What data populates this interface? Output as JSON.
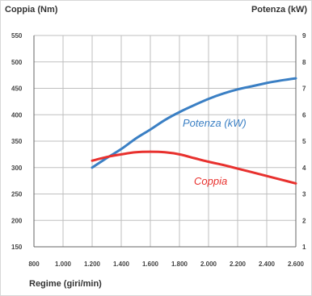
{
  "chart_data": {
    "type": "line",
    "title": "",
    "xlabel": "Regime (giri/min)",
    "ylabel_left": "Coppia (Nm)",
    "ylabel_right": "Potenza (kW)",
    "xlim": [
      800,
      2600
    ],
    "ylim_left": [
      150,
      550
    ],
    "ylim_right": [
      1,
      9
    ],
    "x_ticks": [
      "800",
      "1.000",
      "1.200",
      "1.400",
      "1.600",
      "1.800",
      "2.000",
      "2.200",
      "2.400",
      "2.600"
    ],
    "y_left_ticks": [
      "550",
      "500",
      "450",
      "400",
      "350",
      "300",
      "250",
      "200",
      "150"
    ],
    "y_right_ticks": [
      "9",
      "8",
      "7",
      "6",
      "5",
      "4",
      "3",
      "2",
      "1"
    ],
    "grid": true,
    "series": [
      {
        "name": "Potenza (kW)",
        "axis": "left",
        "color": "#3a7fc4",
        "x": [
          1200,
          1300,
          1400,
          1500,
          1600,
          1700,
          1800,
          1900,
          2000,
          2100,
          2200,
          2300,
          2400,
          2500,
          2600
        ],
        "y": [
          300,
          318,
          335,
          355,
          372,
          390,
          405,
          418,
          430,
          440,
          448,
          454,
          460,
          465,
          469
        ]
      },
      {
        "name": "Coppia",
        "axis": "left",
        "color": "#e8312e",
        "x": [
          1200,
          1300,
          1400,
          1500,
          1600,
          1700,
          1800,
          1900,
          2000,
          2100,
          2200,
          2300,
          2400,
          2500,
          2600
        ],
        "y": [
          313,
          320,
          325,
          329,
          330,
          329,
          325,
          318,
          311,
          305,
          298,
          291,
          284,
          277,
          270
        ]
      }
    ]
  }
}
